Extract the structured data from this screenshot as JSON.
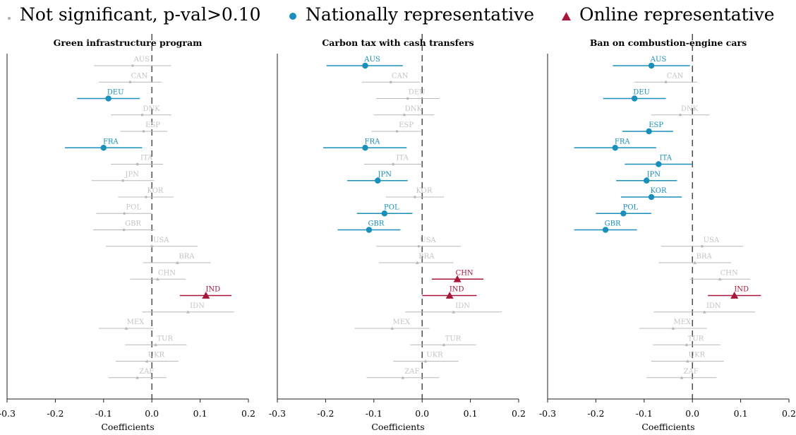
{
  "legend": {
    "items": [
      {
        "label": "Not significant, p-val>0.10",
        "color": "#b3b3b3",
        "marker": "small-dot"
      },
      {
        "label": "Nationally representative",
        "color": "#1a8fba",
        "marker": "circle"
      },
      {
        "label": "Online representative",
        "color": "#a8163a",
        "marker": "triangle"
      }
    ]
  },
  "colors": {
    "nonsig": "#b8b8b8",
    "national": "#1a8fba",
    "online": "#a8163a",
    "label_nonsig": "#c4c4c4"
  },
  "chart_data": [
    {
      "type": "scatter",
      "title": "Green infrastructure program",
      "xlabel": "Coefficients",
      "xlim": [
        -0.3,
        0.2
      ],
      "xticks": [
        "-0.3",
        "-0.2",
        "-0.1",
        "0.0",
        "0.1",
        "0.2"
      ],
      "points": [
        {
          "country": "AUS",
          "coef": -0.04,
          "lo": -0.12,
          "hi": 0.04,
          "sig": "nonsig",
          "group": "national"
        },
        {
          "country": "CAN",
          "coef": -0.045,
          "lo": -0.11,
          "hi": 0.02,
          "sig": "nonsig",
          "group": "national"
        },
        {
          "country": "DEU",
          "coef": -0.09,
          "lo": -0.155,
          "hi": -0.025,
          "sig": "national",
          "group": "national"
        },
        {
          "country": "DNK",
          "coef": -0.02,
          "lo": -0.085,
          "hi": 0.04,
          "sig": "nonsig",
          "group": "national"
        },
        {
          "country": "ESP",
          "coef": -0.017,
          "lo": -0.065,
          "hi": 0.032,
          "sig": "nonsig",
          "group": "national"
        },
        {
          "country": "FRA",
          "coef": -0.1,
          "lo": -0.18,
          "hi": -0.02,
          "sig": "national",
          "group": "national"
        },
        {
          "country": "ITA",
          "coef": -0.03,
          "lo": -0.085,
          "hi": 0.023,
          "sig": "nonsig",
          "group": "national"
        },
        {
          "country": "JPN",
          "coef": -0.06,
          "lo": -0.125,
          "hi": 0.005,
          "sig": "nonsig",
          "group": "national"
        },
        {
          "country": "KOR",
          "coef": -0.012,
          "lo": -0.07,
          "hi": 0.045,
          "sig": "nonsig",
          "group": "national"
        },
        {
          "country": "POL",
          "coef": -0.057,
          "lo": -0.115,
          "hi": 0.0,
          "sig": "nonsig",
          "group": "national"
        },
        {
          "country": "GBR",
          "coef": -0.058,
          "lo": -0.122,
          "hi": 0.005,
          "sig": "nonsig",
          "group": "national"
        },
        {
          "country": "USA",
          "coef": 0.0,
          "lo": -0.095,
          "hi": 0.095,
          "sig": "nonsig",
          "group": "national"
        },
        {
          "country": "BRA",
          "coef": 0.053,
          "lo": -0.018,
          "hi": 0.122,
          "sig": "nonsig",
          "group": "online"
        },
        {
          "country": "CHN",
          "coef": 0.012,
          "lo": -0.045,
          "hi": 0.07,
          "sig": "nonsig",
          "group": "online"
        },
        {
          "country": "IND",
          "coef": 0.112,
          "lo": 0.058,
          "hi": 0.165,
          "sig": "online",
          "group": "online"
        },
        {
          "country": "IDN",
          "coef": 0.075,
          "lo": -0.02,
          "hi": 0.17,
          "sig": "nonsig",
          "group": "online"
        },
        {
          "country": "MEX",
          "coef": -0.053,
          "lo": -0.11,
          "hi": 0.003,
          "sig": "nonsig",
          "group": "online"
        },
        {
          "country": "TUR",
          "coef": 0.008,
          "lo": -0.055,
          "hi": 0.072,
          "sig": "nonsig",
          "group": "online"
        },
        {
          "country": "UKR",
          "coef": -0.01,
          "lo": -0.075,
          "hi": 0.055,
          "sig": "nonsig",
          "group": "online"
        },
        {
          "country": "ZAF",
          "coef": -0.03,
          "lo": -0.09,
          "hi": 0.03,
          "sig": "nonsig",
          "group": "online"
        }
      ]
    },
    {
      "type": "scatter",
      "title": "Carbon tax with cash transfers",
      "xlabel": "Coefficients",
      "xlim": [
        -0.3,
        0.2
      ],
      "xticks": [
        "-0.3",
        "-0.2",
        "-0.1",
        "0.0",
        "0.1",
        "0.2"
      ],
      "points": [
        {
          "country": "AUS",
          "coef": -0.118,
          "lo": -0.198,
          "hi": -0.04,
          "sig": "national",
          "group": "national"
        },
        {
          "country": "CAN",
          "coef": -0.065,
          "lo": -0.125,
          "hi": -0.005,
          "sig": "nonsig",
          "group": "national"
        },
        {
          "country": "DEU",
          "coef": -0.03,
          "lo": -0.095,
          "hi": 0.035,
          "sig": "nonsig",
          "group": "national"
        },
        {
          "country": "DNK",
          "coef": -0.037,
          "lo": -0.1,
          "hi": 0.025,
          "sig": "nonsig",
          "group": "national"
        },
        {
          "country": "ESP",
          "coef": -0.052,
          "lo": -0.105,
          "hi": 0.0,
          "sig": "nonsig",
          "group": "national"
        },
        {
          "country": "FRA",
          "coef": -0.118,
          "lo": -0.205,
          "hi": -0.032,
          "sig": "national",
          "group": "national"
        },
        {
          "country": "ITA",
          "coef": -0.06,
          "lo": -0.12,
          "hi": 0.0,
          "sig": "nonsig",
          "group": "national"
        },
        {
          "country": "JPN",
          "coef": -0.092,
          "lo": -0.155,
          "hi": -0.03,
          "sig": "national",
          "group": "national"
        },
        {
          "country": "KOR",
          "coef": -0.015,
          "lo": -0.075,
          "hi": 0.045,
          "sig": "nonsig",
          "group": "national"
        },
        {
          "country": "POL",
          "coef": -0.078,
          "lo": -0.135,
          "hi": -0.02,
          "sig": "national",
          "group": "national"
        },
        {
          "country": "GBR",
          "coef": -0.11,
          "lo": -0.175,
          "hi": -0.045,
          "sig": "national",
          "group": "national"
        },
        {
          "country": "USA",
          "coef": -0.007,
          "lo": -0.095,
          "hi": 0.08,
          "sig": "nonsig",
          "group": "national"
        },
        {
          "country": "BRA",
          "coef": -0.01,
          "lo": -0.09,
          "hi": 0.065,
          "sig": "nonsig",
          "group": "online"
        },
        {
          "country": "CHN",
          "coef": 0.073,
          "lo": 0.02,
          "hi": 0.127,
          "sig": "online",
          "group": "online"
        },
        {
          "country": "IND",
          "coef": 0.057,
          "lo": 0.0,
          "hi": 0.113,
          "sig": "online",
          "group": "online"
        },
        {
          "country": "IDN",
          "coef": 0.065,
          "lo": -0.035,
          "hi": 0.165,
          "sig": "nonsig",
          "group": "online"
        },
        {
          "country": "MEX",
          "coef": -0.062,
          "lo": -0.14,
          "hi": 0.015,
          "sig": "nonsig",
          "group": "online"
        },
        {
          "country": "TUR",
          "coef": 0.045,
          "lo": -0.025,
          "hi": 0.112,
          "sig": "nonsig",
          "group": "online"
        },
        {
          "country": "UKR",
          "coef": 0.007,
          "lo": -0.06,
          "hi": 0.075,
          "sig": "nonsig",
          "group": "online"
        },
        {
          "country": "ZAF",
          "coef": -0.04,
          "lo": -0.115,
          "hi": 0.035,
          "sig": "nonsig",
          "group": "online"
        }
      ]
    },
    {
      "type": "scatter",
      "title": "Ban on combustion-engine cars",
      "xlabel": "Coefficients",
      "xlim": [
        -0.3,
        0.2
      ],
      "xticks": [
        "-0.3",
        "-0.2",
        "-0.1",
        "0.0",
        "0.1",
        "0.2"
      ],
      "points": [
        {
          "country": "AUS",
          "coef": -0.085,
          "lo": -0.165,
          "hi": -0.005,
          "sig": "national",
          "group": "national"
        },
        {
          "country": "CAN",
          "coef": -0.055,
          "lo": -0.12,
          "hi": 0.01,
          "sig": "nonsig",
          "group": "national"
        },
        {
          "country": "DEU",
          "coef": -0.12,
          "lo": -0.185,
          "hi": -0.055,
          "sig": "national",
          "group": "national"
        },
        {
          "country": "DNK",
          "coef": -0.025,
          "lo": -0.085,
          "hi": 0.035,
          "sig": "nonsig",
          "group": "national"
        },
        {
          "country": "ESP",
          "coef": -0.09,
          "lo": -0.145,
          "hi": -0.04,
          "sig": "national",
          "group": "national"
        },
        {
          "country": "FRA",
          "coef": -0.16,
          "lo": -0.245,
          "hi": -0.075,
          "sig": "national",
          "group": "national"
        },
        {
          "country": "ITA",
          "coef": -0.07,
          "lo": -0.14,
          "hi": 0.0,
          "sig": "national",
          "group": "national"
        },
        {
          "country": "JPN",
          "coef": -0.095,
          "lo": -0.158,
          "hi": -0.032,
          "sig": "national",
          "group": "national"
        },
        {
          "country": "KOR",
          "coef": -0.085,
          "lo": -0.148,
          "hi": -0.022,
          "sig": "national",
          "group": "national"
        },
        {
          "country": "POL",
          "coef": -0.143,
          "lo": -0.2,
          "hi": -0.085,
          "sig": "national",
          "group": "national"
        },
        {
          "country": "GBR",
          "coef": -0.18,
          "lo": -0.245,
          "hi": -0.115,
          "sig": "national",
          "group": "national"
        },
        {
          "country": "USA",
          "coef": 0.02,
          "lo": -0.065,
          "hi": 0.105,
          "sig": "nonsig",
          "group": "national"
        },
        {
          "country": "BRA",
          "coef": 0.005,
          "lo": -0.07,
          "hi": 0.08,
          "sig": "nonsig",
          "group": "online"
        },
        {
          "country": "CHN",
          "coef": 0.057,
          "lo": -0.005,
          "hi": 0.12,
          "sig": "nonsig",
          "group": "online"
        },
        {
          "country": "IND",
          "coef": 0.087,
          "lo": 0.032,
          "hi": 0.142,
          "sig": "online",
          "group": "online"
        },
        {
          "country": "IDN",
          "coef": 0.025,
          "lo": -0.08,
          "hi": 0.13,
          "sig": "nonsig",
          "group": "online"
        },
        {
          "country": "MEX",
          "coef": -0.04,
          "lo": -0.11,
          "hi": 0.03,
          "sig": "nonsig",
          "group": "online"
        },
        {
          "country": "TUR",
          "coef": -0.012,
          "lo": -0.082,
          "hi": 0.058,
          "sig": "nonsig",
          "group": "online"
        },
        {
          "country": "UKR",
          "coef": -0.01,
          "lo": -0.085,
          "hi": 0.065,
          "sig": "nonsig",
          "group": "online"
        },
        {
          "country": "ZAF",
          "coef": -0.022,
          "lo": -0.095,
          "hi": 0.05,
          "sig": "nonsig",
          "group": "online"
        }
      ]
    }
  ]
}
